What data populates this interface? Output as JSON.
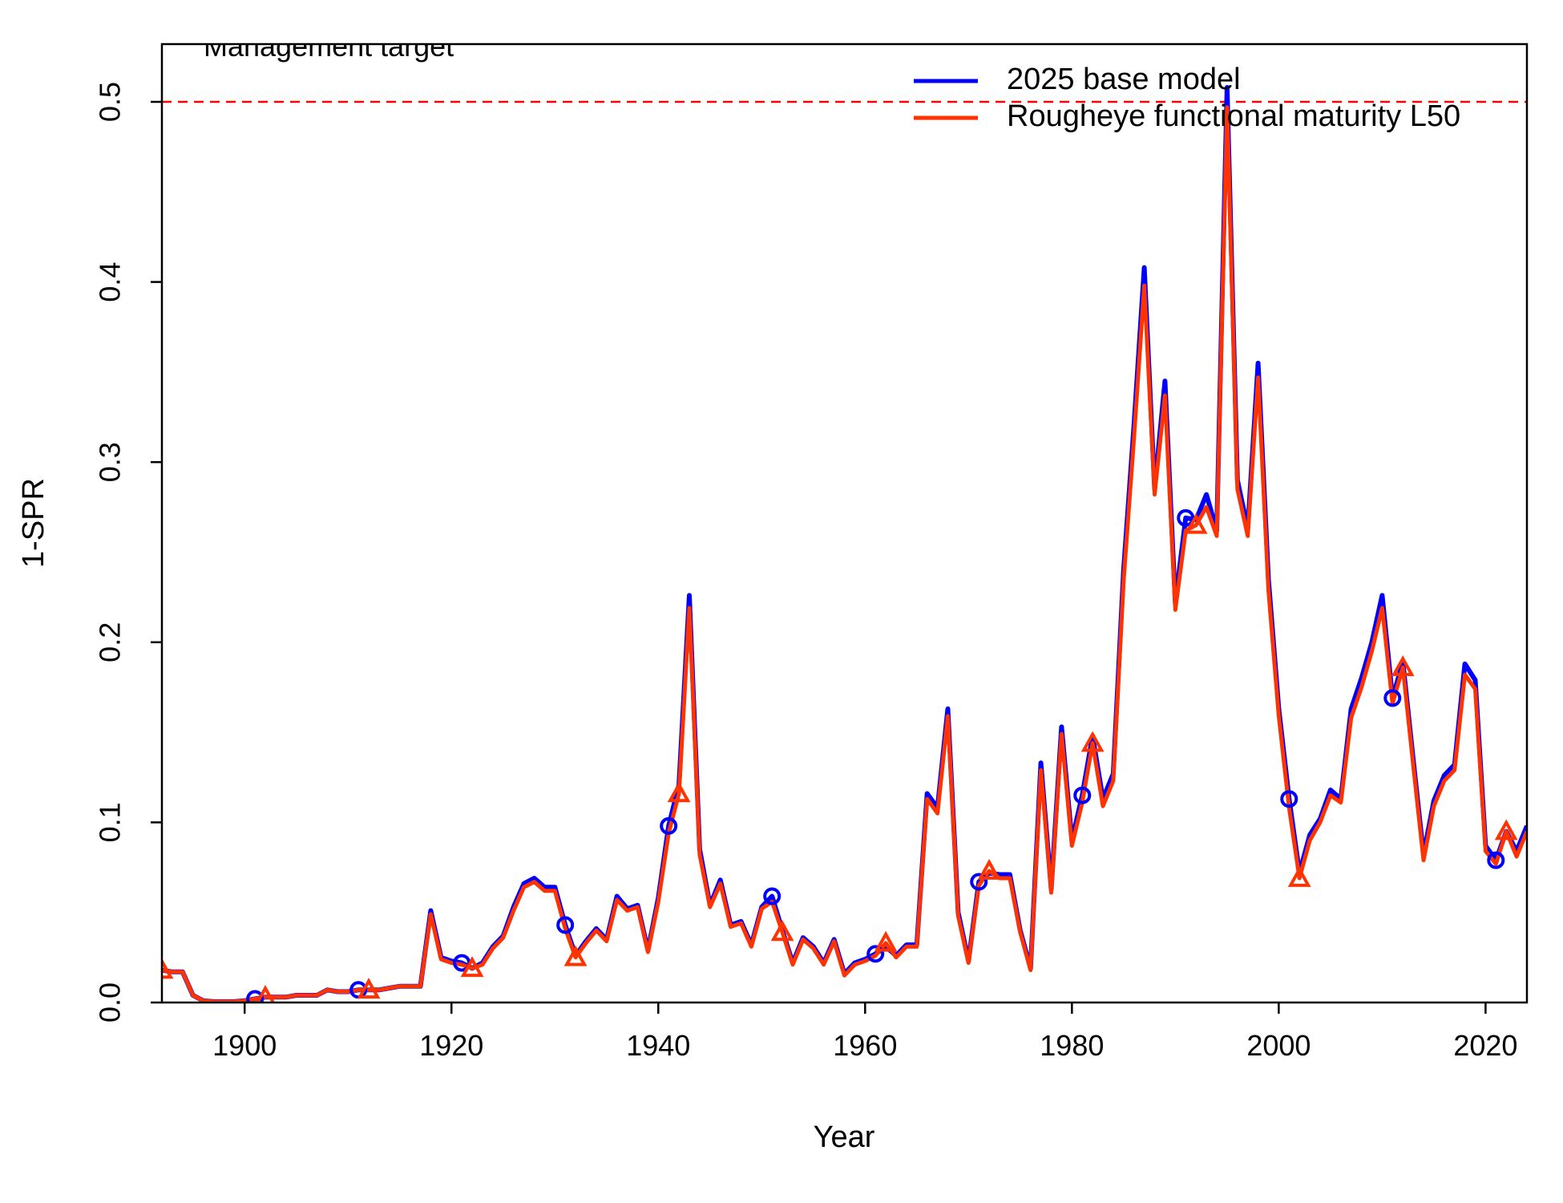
{
  "chart_data": {
    "type": "line",
    "xlabel": "Year",
    "ylabel": "1-SPR",
    "xlim": [
      1892,
      2024
    ],
    "ylim": [
      0,
      0.5
    ],
    "x_ticks": [
      "1900",
      "1920",
      "1940",
      "1960",
      "1980",
      "2000",
      "2020"
    ],
    "y_ticks": [
      "0.0",
      "0.1",
      "0.2",
      "0.3",
      "0.4",
      "0.5"
    ],
    "grid": false,
    "legend_position": "top-right",
    "reference_line": {
      "label": "Management target",
      "value": 0.5,
      "color": "#ff0000",
      "style": "dashed"
    },
    "series": [
      {
        "name": "2025 base model",
        "color": "#0000ff",
        "marker": "circle",
        "marker_every": 10,
        "marker_offset": 9,
        "x": [
          1892,
          1893,
          1894,
          1895,
          1896,
          1897,
          1898,
          1899,
          1900,
          1901,
          1902,
          1903,
          1904,
          1905,
          1906,
          1907,
          1908,
          1909,
          1910,
          1911,
          1912,
          1913,
          1914,
          1915,
          1916,
          1917,
          1918,
          1919,
          1920,
          1921,
          1922,
          1923,
          1924,
          1925,
          1926,
          1927,
          1928,
          1929,
          1930,
          1931,
          1932,
          1933,
          1934,
          1935,
          1936,
          1937,
          1938,
          1939,
          1940,
          1941,
          1942,
          1943,
          1944,
          1945,
          1946,
          1947,
          1948,
          1949,
          1950,
          1951,
          1952,
          1953,
          1954,
          1955,
          1956,
          1957,
          1958,
          1959,
          1960,
          1961,
          1962,
          1963,
          1964,
          1965,
          1966,
          1967,
          1968,
          1969,
          1970,
          1971,
          1972,
          1973,
          1974,
          1975,
          1976,
          1977,
          1978,
          1979,
          1980,
          1981,
          1982,
          1983,
          1984,
          1985,
          1986,
          1987,
          1988,
          1989,
          1990,
          1991,
          1992,
          1993,
          1994,
          1995,
          1996,
          1997,
          1998,
          1999,
          2000,
          2001,
          2002,
          2003,
          2004,
          2005,
          2006,
          2007,
          2008,
          2009,
          2010,
          2011,
          2012,
          2013,
          2014,
          2015,
          2016,
          2017,
          2018,
          2019,
          2020,
          2021,
          2022,
          2023,
          2024
        ],
        "y": [
          0.018,
          0.017,
          0.017,
          0.004,
          0.001,
          0.0005,
          0.0005,
          0.0005,
          0.001,
          0.002,
          0.003,
          0.003,
          0.003,
          0.004,
          0.004,
          0.004,
          0.007,
          0.006,
          0.006,
          0.007,
          0.007,
          0.007,
          0.008,
          0.009,
          0.009,
          0.009,
          0.051,
          0.025,
          0.023,
          0.022,
          0.019,
          0.022,
          0.031,
          0.037,
          0.053,
          0.066,
          0.069,
          0.064,
          0.064,
          0.043,
          0.026,
          0.034,
          0.041,
          0.035,
          0.059,
          0.052,
          0.054,
          0.029,
          0.058,
          0.098,
          0.121,
          0.226,
          0.085,
          0.054,
          0.068,
          0.043,
          0.045,
          0.032,
          0.053,
          0.059,
          0.04,
          0.022,
          0.036,
          0.031,
          0.022,
          0.035,
          0.016,
          0.022,
          0.024,
          0.027,
          0.031,
          0.026,
          0.032,
          0.032,
          0.116,
          0.108,
          0.163,
          0.05,
          0.023,
          0.067,
          0.072,
          0.071,
          0.071,
          0.04,
          0.019,
          0.133,
          0.063,
          0.153,
          0.09,
          0.115,
          0.148,
          0.113,
          0.127,
          0.24,
          0.32,
          0.408,
          0.285,
          0.345,
          0.222,
          0.269,
          0.268,
          0.282,
          0.262,
          0.508,
          0.29,
          0.263,
          0.355,
          0.235,
          0.163,
          0.113,
          0.072,
          0.093,
          0.102,
          0.118,
          0.113,
          0.163,
          0.18,
          0.2,
          0.226,
          0.169,
          0.189,
          0.135,
          0.082,
          0.112,
          0.126,
          0.132,
          0.188,
          0.179,
          0.087,
          0.079,
          0.095,
          0.084,
          0.098
        ]
      },
      {
        "name": "Roughe​ye functional maturity L50",
        "color": "#ff3300",
        "marker": "triangle",
        "marker_every": 10,
        "marker_offset": 0,
        "x": [
          1892,
          1893,
          1894,
          1895,
          1896,
          1897,
          1898,
          1899,
          1900,
          1901,
          1902,
          1903,
          1904,
          1905,
          1906,
          1907,
          1908,
          1909,
          1910,
          1911,
          1912,
          1913,
          1914,
          1915,
          1916,
          1917,
          1918,
          1919,
          1920,
          1921,
          1922,
          1923,
          1924,
          1925,
          1926,
          1927,
          1928,
          1929,
          1930,
          1931,
          1932,
          1933,
          1934,
          1935,
          1936,
          1937,
          1938,
          1939,
          1940,
          1941,
          1942,
          1943,
          1944,
          1945,
          1946,
          1947,
          1948,
          1949,
          1950,
          1951,
          1952,
          1953,
          1954,
          1955,
          1956,
          1957,
          1958,
          1959,
          1960,
          1961,
          1962,
          1963,
          1964,
          1965,
          1966,
          1967,
          1968,
          1969,
          1970,
          1971,
          1972,
          1973,
          1974,
          1975,
          1976,
          1977,
          1978,
          1979,
          1980,
          1981,
          1982,
          1983,
          1984,
          1985,
          1986,
          1987,
          1988,
          1989,
          1990,
          1991,
          1992,
          1993,
          1994,
          1995,
          1996,
          1997,
          1998,
          1999,
          2000,
          2001,
          2002,
          2003,
          2004,
          2005,
          2006,
          2007,
          2008,
          2009,
          2010,
          2011,
          2012,
          2013,
          2014,
          2015,
          2016,
          2017,
          2018,
          2019,
          2020,
          2021,
          2022,
          2023,
          2024
        ],
        "y": [
          0.018,
          0.017,
          0.017,
          0.004,
          0.001,
          0.0005,
          0.0005,
          0.0005,
          0.001,
          0.002,
          0.003,
          0.003,
          0.003,
          0.004,
          0.004,
          0.004,
          0.007,
          0.006,
          0.006,
          0.007,
          0.007,
          0.007,
          0.008,
          0.009,
          0.009,
          0.009,
          0.049,
          0.024,
          0.022,
          0.021,
          0.019,
          0.021,
          0.03,
          0.036,
          0.051,
          0.064,
          0.067,
          0.062,
          0.062,
          0.041,
          0.025,
          0.033,
          0.04,
          0.034,
          0.057,
          0.051,
          0.053,
          0.028,
          0.056,
          0.094,
          0.116,
          0.219,
          0.082,
          0.053,
          0.066,
          0.042,
          0.044,
          0.031,
          0.052,
          0.056,
          0.039,
          0.021,
          0.035,
          0.03,
          0.021,
          0.034,
          0.015,
          0.021,
          0.023,
          0.026,
          0.033,
          0.025,
          0.031,
          0.031,
          0.113,
          0.105,
          0.159,
          0.048,
          0.022,
          0.065,
          0.073,
          0.069,
          0.069,
          0.039,
          0.018,
          0.129,
          0.061,
          0.149,
          0.087,
          0.111,
          0.144,
          0.109,
          0.123,
          0.234,
          0.313,
          0.398,
          0.282,
          0.337,
          0.218,
          0.262,
          0.265,
          0.275,
          0.259,
          0.497,
          0.285,
          0.259,
          0.347,
          0.229,
          0.159,
          0.108,
          0.069,
          0.09,
          0.1,
          0.115,
          0.111,
          0.158,
          0.175,
          0.195,
          0.219,
          0.166,
          0.186,
          0.132,
          0.079,
          0.109,
          0.123,
          0.129,
          0.182,
          0.174,
          0.084,
          0.077,
          0.095,
          0.081,
          0.095
        ]
      }
    ]
  }
}
